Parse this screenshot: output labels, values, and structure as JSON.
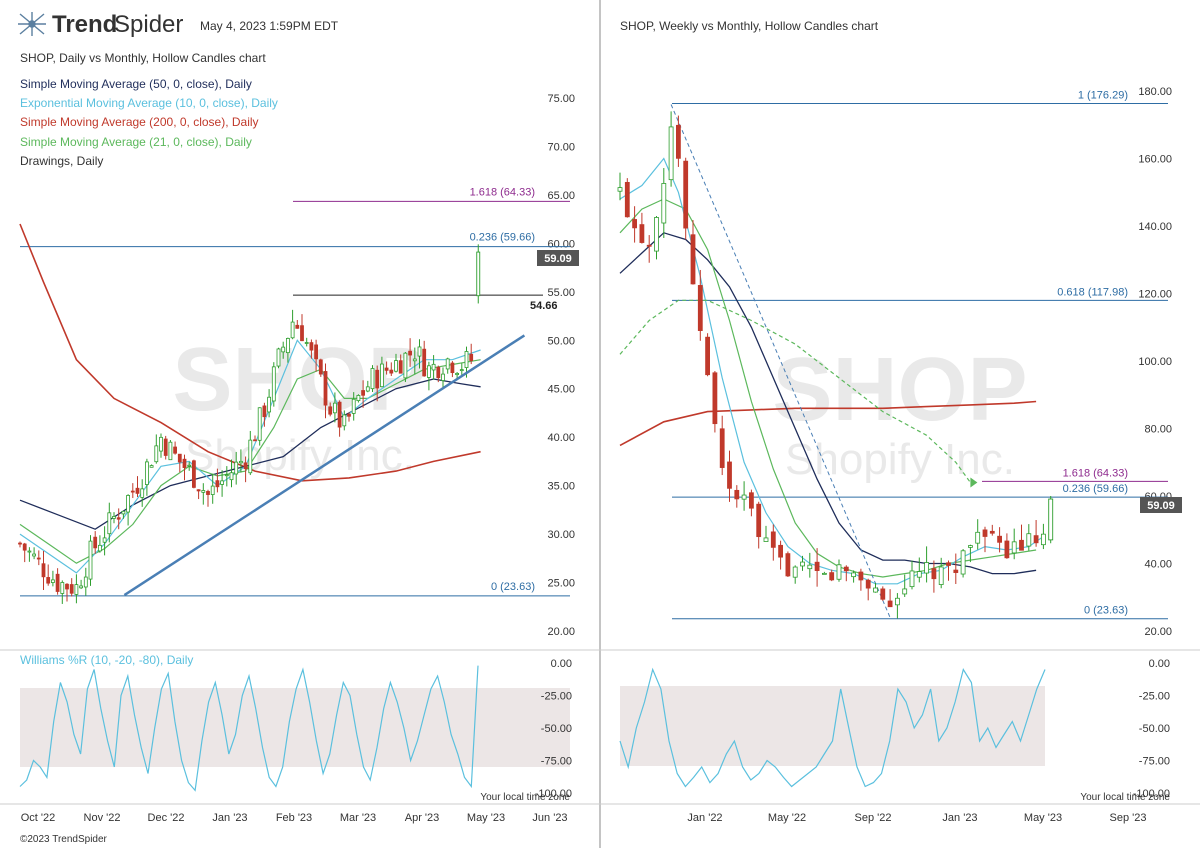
{
  "header": {
    "brand_prefix": "Trend",
    "brand_suffix": "Spider",
    "timestamp": "May 4, 2023 1:59PM EDT",
    "copyright": "©2023 TrendSpider",
    "local_time_note": "Your local time zone"
  },
  "colors": {
    "up": "#2e9e2e",
    "down": "#c0392b",
    "sma50": "#1f2d5a",
    "ema10": "#5bc0de",
    "sma200": "#c0392b",
    "sma21": "#5cb85c",
    "fib_blue": "#2e6da4",
    "fib_purple": "#8e2b8e",
    "trendline": "#4a7fb5",
    "wr_line": "#5bc0de",
    "wr_band": "#ece6e6",
    "watermark": "#e9e9e9"
  },
  "watermark": {
    "ticker": "SHOP",
    "company": "Shopify Inc."
  },
  "chart_data": [
    {
      "type": "candlestick",
      "panel": "left",
      "title": "SHOP, Daily vs Monthly, Hollow Candles chart",
      "legend": [
        "Simple Moving Average (50, 0, close), Daily",
        "Exponential Moving Average (10, 0, close), Daily",
        "Simple Moving Average (200, 0, close), Daily",
        "Simple Moving Average (21, 0, close), Daily",
        "Drawings, Daily"
      ],
      "x_ticks": [
        "Oct '22",
        "Nov '22",
        "Dec '22",
        "Jan '23",
        "Feb '23",
        "Mar '23",
        "Apr '23",
        "May '23",
        "Jun '23"
      ],
      "y_ticks": [
        "75.00",
        "70.00",
        "65.00",
        "60.00",
        "55.00",
        "50.00",
        "45.00",
        "40.00",
        "35.00",
        "30.00",
        "25.00",
        "20.00"
      ],
      "ylim": [
        18,
        77
      ],
      "x_range_months": [
        0,
        8.7
      ],
      "price_tag": "59.09",
      "levels": [
        {
          "label": "1.618 (64.33)",
          "value": 64.33,
          "color": "purple"
        },
        {
          "label": "0.236 (59.66)",
          "value": 59.66,
          "color": "blue"
        },
        {
          "label": "0 (23.63)",
          "value": 23.63,
          "color": "blue"
        },
        {
          "label": "54.66",
          "value": 54.66,
          "color": "dark"
        }
      ],
      "trendline": {
        "from": [
          1.35,
          23.7
        ],
        "to": [
          7.6,
          50.5
        ]
      },
      "close_path": [
        [
          0,
          29
        ],
        [
          0.4,
          27
        ],
        [
          0.8,
          25
        ],
        [
          1.2,
          24.5
        ],
        [
          1.5,
          28
        ],
        [
          1.9,
          31
        ],
        [
          2.2,
          33
        ],
        [
          2.6,
          36
        ],
        [
          3.0,
          40
        ],
        [
          3.3,
          38
        ],
        [
          3.7,
          36
        ],
        [
          4.0,
          34
        ],
        [
          4.4,
          36
        ],
        [
          4.8,
          38
        ],
        [
          5.2,
          43
        ],
        [
          5.5,
          48
        ],
        [
          5.8,
          52
        ],
        [
          6.0,
          51
        ],
        [
          6.3,
          47
        ],
        [
          6.6,
          43
        ],
        [
          6.9,
          41
        ],
        [
          7.2,
          44
        ],
        [
          7.5,
          46
        ],
        [
          7.8,
          47
        ],
        [
          8.1,
          48
        ],
        [
          8.4,
          49
        ],
        [
          8.7,
          47
        ],
        [
          9.1,
          48
        ],
        [
          9.4,
          47.5
        ],
        [
          9.6,
          48
        ],
        [
          9.75,
          59.1
        ]
      ],
      "sma50": [
        [
          0,
          33.5
        ],
        [
          0.8,
          32
        ],
        [
          1.6,
          30.5
        ],
        [
          2.4,
          33
        ],
        [
          3.2,
          35
        ],
        [
          4.0,
          36
        ],
        [
          4.8,
          37
        ],
        [
          5.6,
          38
        ],
        [
          6.4,
          41
        ],
        [
          7.2,
          43
        ],
        [
          8.0,
          45
        ],
        [
          8.8,
          46
        ],
        [
          9.4,
          45.5
        ],
        [
          9.8,
          45.2
        ]
      ],
      "sma200": [
        [
          0,
          62
        ],
        [
          0.5,
          56
        ],
        [
          1.2,
          48
        ],
        [
          2.0,
          44
        ],
        [
          3.0,
          41.5
        ],
        [
          4.0,
          38.5
        ],
        [
          5.0,
          36.5
        ],
        [
          6.0,
          35.5
        ],
        [
          7.0,
          35.8
        ],
        [
          8.0,
          36.5
        ],
        [
          8.8,
          37.5
        ],
        [
          9.8,
          38.5
        ]
      ],
      "ema10": [
        [
          0,
          30
        ],
        [
          0.6,
          28
        ],
        [
          1.2,
          26
        ],
        [
          1.8,
          29
        ],
        [
          2.4,
          33
        ],
        [
          3.0,
          37
        ],
        [
          3.6,
          37.5
        ],
        [
          4.2,
          35
        ],
        [
          4.8,
          37
        ],
        [
          5.4,
          44
        ],
        [
          5.9,
          50
        ],
        [
          6.4,
          47
        ],
        [
          6.9,
          42
        ],
        [
          7.4,
          44
        ],
        [
          8.0,
          46
        ],
        [
          8.6,
          48
        ],
        [
          9.2,
          48
        ],
        [
          9.8,
          49
        ]
      ],
      "sma21": [
        [
          0,
          31
        ],
        [
          0.6,
          29
        ],
        [
          1.2,
          27
        ],
        [
          1.8,
          28.5
        ],
        [
          2.4,
          31
        ],
        [
          3.0,
          35
        ],
        [
          3.6,
          37
        ],
        [
          4.2,
          36
        ],
        [
          4.8,
          36.5
        ],
        [
          5.4,
          41
        ],
        [
          5.9,
          46
        ],
        [
          6.4,
          47
        ],
        [
          6.9,
          44
        ],
        [
          7.4,
          44
        ],
        [
          8.0,
          45.5
        ],
        [
          8.6,
          47
        ],
        [
          9.2,
          47.5
        ],
        [
          9.8,
          48
        ]
      ],
      "williams_r": {
        "label": "Williams %R (10, -20, -80), Daily",
        "y_ticks": [
          "0.00",
          "-25.00",
          "-50.00",
          "-75.00",
          "-100.00"
        ],
        "band": [
          -20,
          -80
        ],
        "values": [
          -95,
          -90,
          -75,
          -80,
          -88,
          -45,
          -15,
          -30,
          -55,
          -70,
          -20,
          -5,
          -35,
          -60,
          -80,
          -25,
          -10,
          -40,
          -65,
          -85,
          -50,
          -20,
          -8,
          -45,
          -75,
          -92,
          -98,
          -60,
          -30,
          -15,
          -40,
          -70,
          -55,
          -25,
          -10,
          -35,
          -65,
          -88,
          -95,
          -80,
          -45,
          -20,
          -5,
          -30,
          -60,
          -85,
          -70,
          -40,
          -15,
          -25,
          -55,
          -80,
          -90,
          -65,
          -35,
          -15,
          -30,
          -50,
          -75,
          -60,
          -40,
          -20,
          -10,
          -30,
          -55,
          -70,
          -88,
          -95,
          -2
        ]
      }
    },
    {
      "type": "candlestick",
      "panel": "right",
      "title": "SHOP, Weekly vs Monthly, Hollow Candles chart",
      "x_ticks": [
        "Jan '22",
        "May '22",
        "Sep '22",
        "Jan '23",
        "May '23",
        "Sep '23"
      ],
      "y_ticks": [
        "180.00",
        "160.00",
        "140.00",
        "120.00",
        "100.00",
        "80.00",
        "60.00",
        "40.00",
        "20.00"
      ],
      "ylim": [
        15,
        188
      ],
      "price_tag": "59.09",
      "levels": [
        {
          "label": "1 (176.29)",
          "value": 176.29,
          "color": "blue"
        },
        {
          "label": "0.618 (117.98)",
          "value": 117.98,
          "color": "blue"
        },
        {
          "label": "1.618 (64.33)",
          "value": 64.33,
          "color": "purple"
        },
        {
          "label": "0.236 (59.66)",
          "value": 59.66,
          "color": "blue"
        },
        {
          "label": "0 (23.63)",
          "value": 23.63,
          "color": "blue"
        }
      ],
      "close_path": [
        [
          0,
          150
        ],
        [
          2,
          140
        ],
        [
          4,
          135
        ],
        [
          6,
          155
        ],
        [
          7,
          170
        ],
        [
          8,
          160
        ],
        [
          9,
          140
        ],
        [
          10,
          120
        ],
        [
          11,
          110
        ],
        [
          12,
          95
        ],
        [
          13,
          80
        ],
        [
          14,
          70
        ],
        [
          15,
          62
        ],
        [
          16,
          60
        ],
        [
          17,
          58
        ],
        [
          18,
          55
        ],
        [
          19,
          48
        ],
        [
          20,
          45
        ],
        [
          22,
          40
        ],
        [
          24,
          38
        ],
        [
          26,
          37
        ],
        [
          28,
          36
        ],
        [
          30,
          38
        ],
        [
          32,
          37
        ],
        [
          34,
          34
        ],
        [
          36,
          30
        ],
        [
          37,
          27
        ],
        [
          38,
          32
        ],
        [
          40,
          35
        ],
        [
          42,
          38
        ],
        [
          44,
          36
        ],
        [
          46,
          40
        ],
        [
          48,
          45
        ],
        [
          49,
          52
        ],
        [
          50,
          48
        ],
        [
          52,
          44
        ],
        [
          54,
          45
        ],
        [
          56,
          46
        ],
        [
          58,
          47
        ],
        [
          59,
          59.1
        ]
      ],
      "sma50": [
        [
          0,
          126
        ],
        [
          3,
          132
        ],
        [
          6,
          138
        ],
        [
          9,
          136
        ],
        [
          12,
          130
        ],
        [
          15,
          122
        ],
        [
          18,
          110
        ],
        [
          21,
          95
        ],
        [
          24,
          80
        ],
        [
          27,
          65
        ],
        [
          30,
          52
        ],
        [
          33,
          44
        ],
        [
          36,
          41
        ],
        [
          39,
          41
        ],
        [
          42,
          40
        ],
        [
          45,
          40
        ],
        [
          48,
          39
        ],
        [
          51,
          37
        ],
        [
          54,
          37
        ],
        [
          57,
          38
        ]
      ],
      "sma200": [
        [
          0,
          75
        ],
        [
          6,
          82
        ],
        [
          12,
          85
        ],
        [
          18,
          85.5
        ],
        [
          24,
          86
        ],
        [
          30,
          86
        ],
        [
          36,
          86
        ],
        [
          42,
          86.5
        ],
        [
          48,
          87
        ],
        [
          54,
          87.5
        ],
        [
          57,
          88
        ]
      ],
      "ema10": [
        [
          0,
          148
        ],
        [
          3,
          152
        ],
        [
          6,
          160
        ],
        [
          8,
          150
        ],
        [
          11,
          125
        ],
        [
          14,
          95
        ],
        [
          17,
          70
        ],
        [
          20,
          55
        ],
        [
          23,
          45
        ],
        [
          26,
          40
        ],
        [
          29,
          38
        ],
        [
          32,
          37
        ],
        [
          35,
          34
        ],
        [
          38,
          34
        ],
        [
          41,
          37
        ],
        [
          44,
          38
        ],
        [
          47,
          42
        ],
        [
          50,
          45
        ],
        [
          53,
          44
        ],
        [
          56,
          45
        ],
        [
          58,
          48
        ]
      ],
      "sma21": [
        [
          0,
          138
        ],
        [
          3,
          145
        ],
        [
          6,
          148
        ],
        [
          9,
          145
        ],
        [
          12,
          133
        ],
        [
          15,
          112
        ],
        [
          18,
          88
        ],
        [
          21,
          68
        ],
        [
          24,
          52
        ],
        [
          27,
          43
        ],
        [
          30,
          39
        ],
        [
          33,
          37
        ],
        [
          36,
          36
        ],
        [
          39,
          37
        ],
        [
          42,
          38
        ],
        [
          45,
          40
        ],
        [
          48,
          41
        ],
        [
          51,
          42
        ],
        [
          54,
          43
        ],
        [
          57,
          44
        ]
      ],
      "sma_dashed": [
        [
          0,
          102
        ],
        [
          4,
          112
        ],
        [
          8,
          118
        ],
        [
          12,
          118
        ],
        [
          18,
          112
        ],
        [
          24,
          105
        ],
        [
          30,
          95
        ],
        [
          36,
          85
        ],
        [
          42,
          78
        ],
        [
          46,
          70
        ],
        [
          48,
          64
        ]
      ],
      "williams_r": {
        "y_ticks": [
          "0.00",
          "-25.00",
          "-50.00",
          "-75.00",
          "-100.00"
        ],
        "band": [
          -20,
          -80
        ],
        "values": [
          -60,
          -80,
          -50,
          -30,
          -5,
          -20,
          -60,
          -85,
          -95,
          -88,
          -80,
          -92,
          -85,
          -70,
          -60,
          -80,
          -90,
          -85,
          -75,
          -80,
          -88,
          -95,
          -90,
          -85,
          -80,
          -70,
          -60,
          -20,
          -50,
          -80,
          -95,
          -92,
          -85,
          -60,
          -20,
          -30,
          -50,
          -40,
          -20,
          -60,
          -50,
          -30,
          -5,
          -15,
          -60,
          -50,
          -65,
          -55,
          -45,
          -60,
          -40,
          -20,
          -5
        ]
      }
    }
  ]
}
